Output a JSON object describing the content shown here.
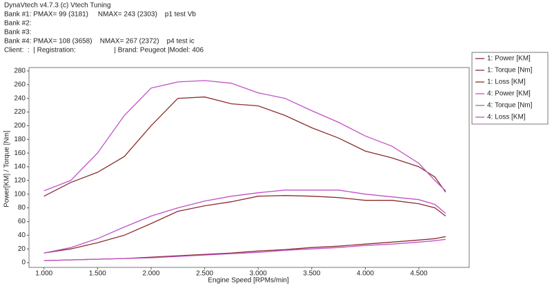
{
  "chart_data": {
    "type": "line",
    "annotations": [
      "DynaVtech v4.7.3 (c) Vtech Tuning",
      "Bank #1: PMAX= 99 (3181)     NMAX= 243 (2303)    p1 test Vb",
      "Bank #2:",
      "Bank #3:",
      "Bank #4: PMAX= 108 (3658)    NMAX= 267 (2372)    p4 test ic",
      "Client:  :  | Registration:                    | Brand: Peugeot |Model: 406"
    ],
    "x_label": "Engine Speed [RPMs/min]",
    "y_label": "Power[KM] / Torque [Nm]",
    "x": [
      1000,
      1250,
      1500,
      1750,
      2000,
      2250,
      2500,
      2750,
      3000,
      3250,
      3500,
      3750,
      4000,
      4250,
      4500,
      4650,
      4750
    ],
    "series": [
      {
        "name": "1: Power [KM]",
        "color": "#8b2c2c",
        "values": [
          14,
          20,
          29,
          40,
          57,
          75,
          83,
          89,
          97,
          98,
          97,
          95,
          91,
          91,
          86,
          80,
          68
        ]
      },
      {
        "name": "1: Torque [Nm]",
        "color": "#8b2c2c",
        "values": [
          97,
          117,
          132,
          155,
          200,
          240,
          242,
          232,
          229,
          215,
          197,
          182,
          163,
          153,
          140,
          125,
          103
        ]
      },
      {
        "name": "1: Loss [KM]",
        "color": "#8b2c2c",
        "values": [
          3,
          4,
          5,
          6,
          8,
          10,
          12,
          14,
          17,
          19,
          22,
          24,
          27,
          30,
          33,
          35,
          38
        ]
      },
      {
        "name": "4: Power [KM]",
        "color": "#c050c8",
        "values": [
          14,
          22,
          35,
          52,
          68,
          80,
          90,
          97,
          102,
          106,
          106,
          106,
          100,
          96,
          92,
          85,
          72
        ]
      },
      {
        "name": "4: Torque [Nm]",
        "color": "#c050c8",
        "values": [
          105,
          120,
          160,
          215,
          255,
          264,
          266,
          262,
          248,
          240,
          222,
          205,
          185,
          170,
          145,
          120,
          105
        ]
      },
      {
        "name": "4: Loss [KM]",
        "color": "#c050c8",
        "values": [
          3,
          4,
          5,
          6,
          7,
          9,
          11,
          13,
          15,
          18,
          20,
          22,
          25,
          27,
          30,
          32,
          34
        ]
      }
    ],
    "xlim": [
      860,
      4970
    ],
    "ylim": [
      -7,
      285
    ],
    "xticks": [
      {
        "value": 1000,
        "label": "1.000"
      },
      {
        "value": 1500,
        "label": "1.500"
      },
      {
        "value": 2000,
        "label": "2.000"
      },
      {
        "value": 2500,
        "label": "2.500"
      },
      {
        "value": 3000,
        "label": "3.000"
      },
      {
        "value": 3500,
        "label": "3.500"
      },
      {
        "value": 4000,
        "label": "4.000"
      },
      {
        "value": 4500,
        "label": "4.500"
      }
    ],
    "yticks": [
      0,
      20,
      40,
      60,
      80,
      100,
      120,
      140,
      160,
      180,
      200,
      220,
      240,
      260,
      280
    ],
    "grid": false,
    "legend": "right"
  }
}
